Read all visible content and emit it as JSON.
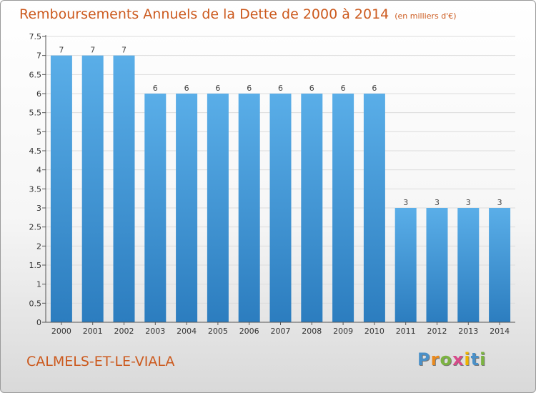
{
  "header": {
    "title": "Remboursements Annuels de la Dette de 2000 à 2014",
    "unit": "(en milliers d'€)"
  },
  "footer": {
    "commune": "CALMELS-ET-LE-VIALA",
    "logo_letters": [
      "P",
      "r",
      "o",
      "x",
      "i",
      "t",
      "i"
    ]
  },
  "colors": {
    "title": "#cc5a1e",
    "bar_top": "#5aaee8",
    "bar_bottom": "#2c7dbf",
    "logo": [
      "#4a90c8",
      "#e98a1f",
      "#7cb342",
      "#d84a8a",
      "#f0b400",
      "#4a90c8",
      "#7cb342"
    ]
  },
  "chart_data": {
    "type": "bar",
    "title": "Remboursements Annuels de la Dette de 2000 à 2014",
    "xlabel": "",
    "ylabel": "(en milliers d'€)",
    "categories": [
      "2000",
      "2001",
      "2002",
      "2003",
      "2004",
      "2005",
      "2006",
      "2007",
      "2008",
      "2009",
      "2010",
      "2011",
      "2012",
      "2013",
      "2014"
    ],
    "values": [
      7,
      7,
      7,
      6,
      6,
      6,
      6,
      6,
      6,
      6,
      6,
      3,
      3,
      3,
      3
    ],
    "data_labels": [
      "7",
      "7",
      "7",
      "6",
      "6",
      "6",
      "6",
      "6",
      "6",
      "6",
      "6",
      "3",
      "3",
      "3",
      "3"
    ],
    "ylim": [
      0,
      7.5
    ],
    "yticks": [
      0,
      0.5,
      1,
      1.5,
      2,
      2.5,
      3,
      3.5,
      4,
      4.5,
      5,
      5.5,
      6,
      6.5,
      7,
      7.5
    ],
    "ytick_labels": [
      "0",
      "0.5",
      "1",
      "1.5",
      "2",
      "2.5",
      "3",
      "3.5",
      "4",
      "4.5",
      "5",
      "5.5",
      "6",
      "6.5",
      "7",
      "7.5"
    ],
    "grid": true
  }
}
